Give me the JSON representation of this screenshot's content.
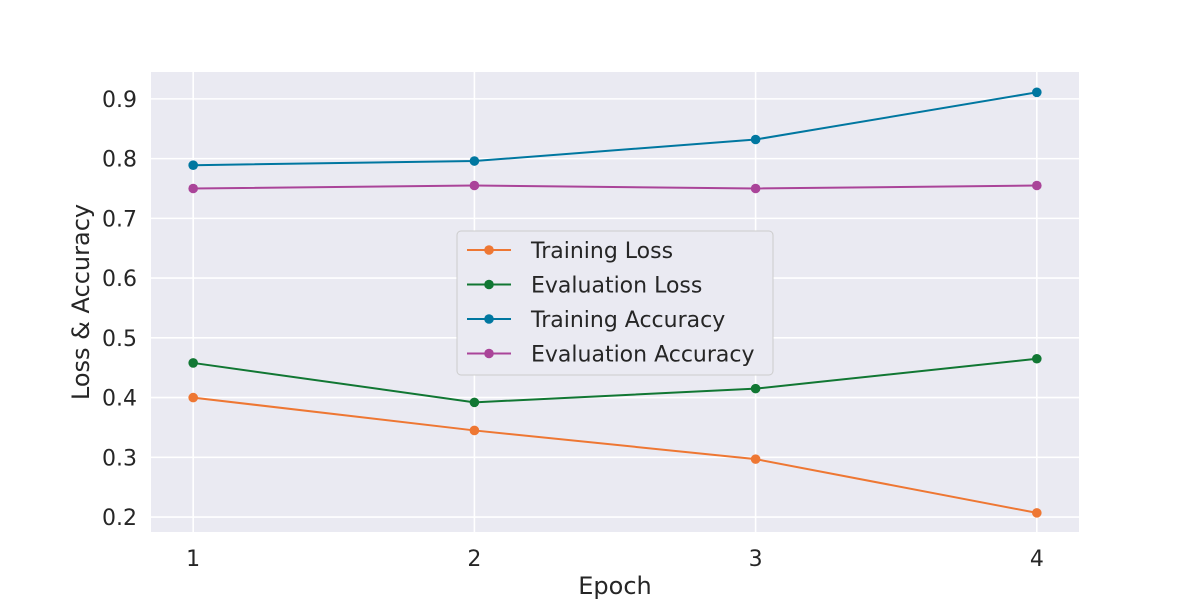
{
  "chart_data": {
    "type": "line",
    "title": "",
    "xlabel": "Epoch",
    "ylabel": "Loss & Accuracy",
    "x": [
      1,
      2,
      3,
      4
    ],
    "xticks": [
      "1",
      "2",
      "3",
      "4"
    ],
    "xlim": [
      0.85,
      4.15
    ],
    "yticks": [
      "0.2",
      "0.3",
      "0.4",
      "0.5",
      "0.6",
      "0.7",
      "0.8",
      "0.9"
    ],
    "ylim": [
      0.175,
      0.945
    ],
    "grid": true,
    "legend_position": "center",
    "background_color": "#eaeaf2",
    "series": [
      {
        "name": "Training Loss",
        "color": "#ee7733",
        "values": [
          0.4,
          0.345,
          0.297,
          0.207
        ]
      },
      {
        "name": "Evaluation Loss",
        "color": "#117733",
        "values": [
          0.458,
          0.392,
          0.415,
          0.465
        ]
      },
      {
        "name": "Training Accuracy",
        "color": "#0077a0",
        "values": [
          0.789,
          0.796,
          0.832,
          0.911
        ]
      },
      {
        "name": "Evaluation Accuracy",
        "color": "#aa4499",
        "values": [
          0.75,
          0.755,
          0.75,
          0.755
        ]
      }
    ]
  }
}
